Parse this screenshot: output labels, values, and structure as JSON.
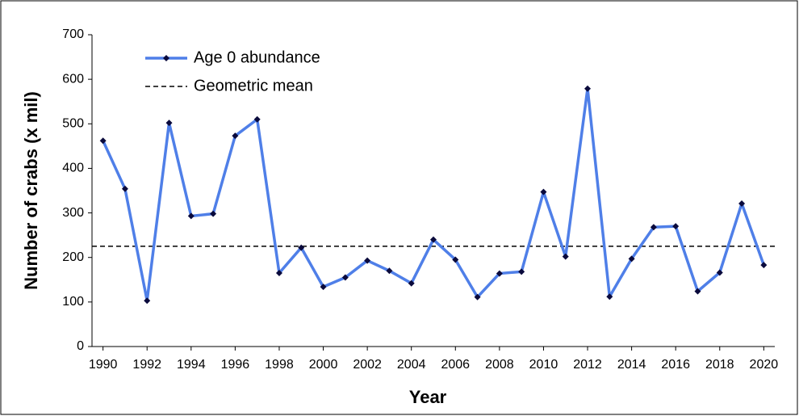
{
  "chart_data": {
    "type": "line",
    "x_label": "Year",
    "y_label": "Number of crabs (x mil)",
    "x": [
      1990,
      1991,
      1992,
      1993,
      1994,
      1995,
      1996,
      1997,
      1998,
      1999,
      2000,
      2001,
      2002,
      2003,
      2004,
      2005,
      2006,
      2007,
      2008,
      2009,
      2010,
      2011,
      2012,
      2013,
      2014,
      2015,
      2016,
      2017,
      2018,
      2019,
      2020
    ],
    "series": [
      {
        "name": "Age 0 abundance",
        "color": "#4f7fe8",
        "values": [
          462,
          354,
          103,
          502,
          293,
          298,
          473,
          510,
          165,
          222,
          134,
          155,
          193,
          170,
          142,
          240,
          195,
          111,
          164,
          168,
          347,
          202,
          579,
          112,
          197,
          268,
          270,
          124,
          166,
          321,
          183
        ]
      }
    ],
    "mean_line": {
      "name": "Geometric mean",
      "value": 225,
      "color": "#000000"
    },
    "xlim": [
      1989.5,
      2020.5
    ],
    "xticks": [
      1990,
      1992,
      1994,
      1996,
      1998,
      2000,
      2002,
      2004,
      2006,
      2008,
      2010,
      2012,
      2014,
      2016,
      2018,
      2020
    ],
    "ylim": [
      0,
      700
    ],
    "yticks": [
      0,
      100,
      200,
      300,
      400,
      500,
      600,
      700
    ]
  }
}
